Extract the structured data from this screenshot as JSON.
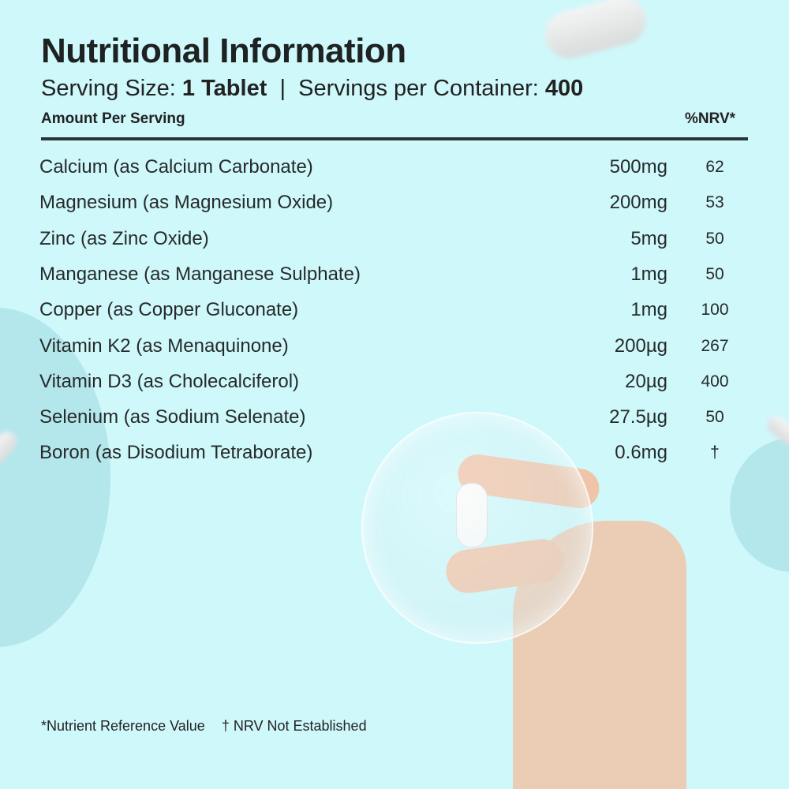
{
  "header": {
    "title": "Nutritional Information",
    "serving_label": "Serving Size:",
    "serving_value": "1 Tablet",
    "separator": "|",
    "servings_label": "Servings per Container:",
    "servings_value": "400",
    "amount_label": "Amount Per Serving",
    "nrv_label": "%NRV*"
  },
  "rows": [
    {
      "name": "Calcium (as Calcium Carbonate)",
      "amount": "500mg",
      "nrv": "62"
    },
    {
      "name": "Magnesium (as Magnesium Oxide)",
      "amount": "200mg",
      "nrv": "53"
    },
    {
      "name": "Zinc (as Zinc Oxide)",
      "amount": "5mg",
      "nrv": "50"
    },
    {
      "name": "Manganese (as Manganese Sulphate)",
      "amount": "1mg",
      "nrv": "50"
    },
    {
      "name": "Copper (as Copper Gluconate)",
      "amount": "1mg",
      "nrv": "100"
    },
    {
      "name": "Vitamin K2 (as Menaquinone)",
      "amount": "200µg",
      "nrv": "267"
    },
    {
      "name": "Vitamin D3 (as Cholecalciferol)",
      "amount": "20µg",
      "nrv": "400"
    },
    {
      "name": "Selenium (as Sodium Selenate)",
      "amount": "27.5µg",
      "nrv": "50"
    },
    {
      "name": "Boron (as Disodium Tetraborate)",
      "amount": "0.6mg",
      "nrv": "†"
    }
  ],
  "footer": {
    "note1": "*Nutrient Reference Value",
    "note2": "† NRV Not Established"
  },
  "colors": {
    "background": "#cff8fb",
    "accent_circle": "#b3e7ec",
    "text": "#222222"
  }
}
